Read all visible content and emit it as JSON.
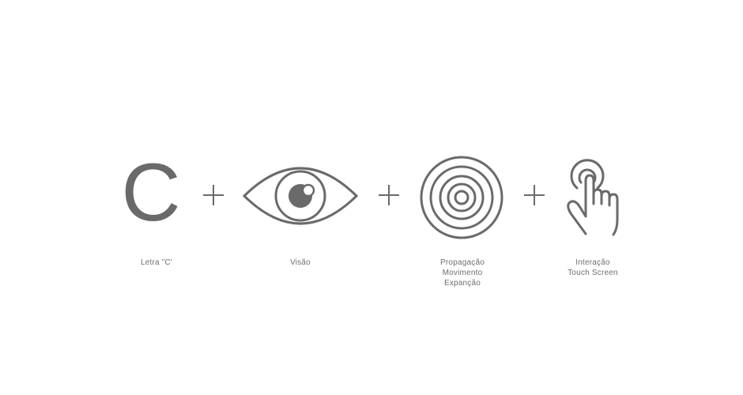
{
  "colors": {
    "icon_stroke": "#6a6a6b",
    "label_text": "#6e6e6e",
    "background": "#ffffff"
  },
  "icons": [
    "letter-c-icon",
    "plus-icon",
    "eye-icon",
    "plus-icon",
    "concentric-circles-icon",
    "plus-icon",
    "touch-hand-icon"
  ],
  "letter_c": {
    "glyph": "C"
  },
  "labels": {
    "letra": [
      "Letra \"C'"
    ],
    "visao": [
      "Visão"
    ],
    "propagacao": [
      "Propagação",
      "Movimento",
      "Expanção"
    ],
    "interacao": [
      "Interação",
      "Touch Screen"
    ]
  }
}
